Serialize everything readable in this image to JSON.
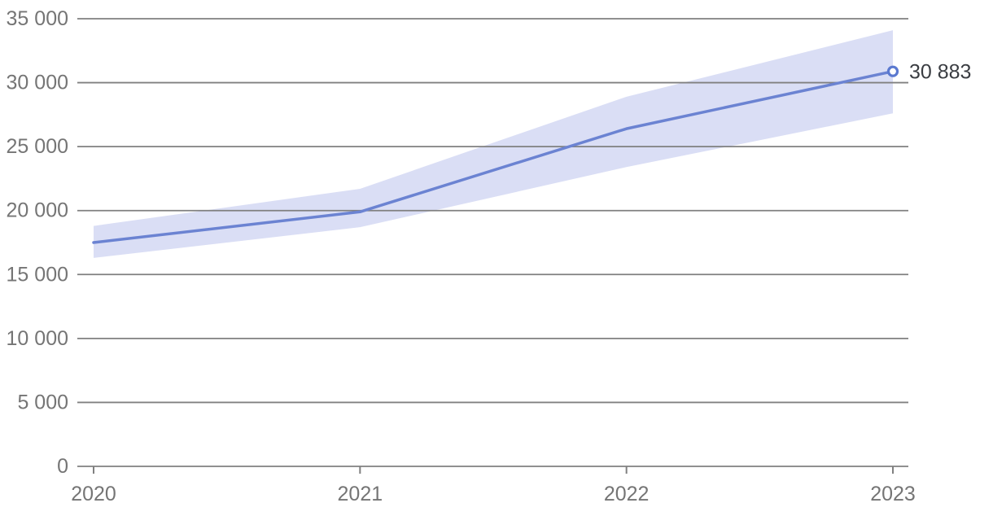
{
  "chart_data": {
    "type": "line",
    "title": "",
    "xlabel": "",
    "ylabel": "",
    "categories": [
      "2020",
      "2021",
      "2022",
      "2023"
    ],
    "x": [
      2020,
      2021,
      2022,
      2023
    ],
    "series": [
      {
        "name": "value",
        "values": [
          17500,
          19900,
          26400,
          30883
        ]
      },
      {
        "name": "band-high",
        "values": [
          18800,
          21700,
          28900,
          34100
        ]
      },
      {
        "name": "band-low",
        "values": [
          16300,
          18700,
          23400,
          27600
        ]
      }
    ],
    "end_label": "30 883",
    "ylim": [
      0,
      35000
    ],
    "y_ticks": [
      0,
      5000,
      10000,
      15000,
      20000,
      25000,
      30000,
      35000
    ],
    "y_tick_labels": [
      "0",
      "5 000",
      "10 000",
      "15 000",
      "20 000",
      "25 000",
      "30 000",
      "35 000"
    ],
    "grid": true,
    "legend": "none",
    "colors": {
      "line": "#6b83d2",
      "band": "#dadef5",
      "grid": "#808080",
      "axis_text": "#757575",
      "end_label_text": "#3a3d42",
      "marker_stroke": "#5b79d0",
      "marker_fill": "#ffffff",
      "background": "#ffffff"
    }
  }
}
